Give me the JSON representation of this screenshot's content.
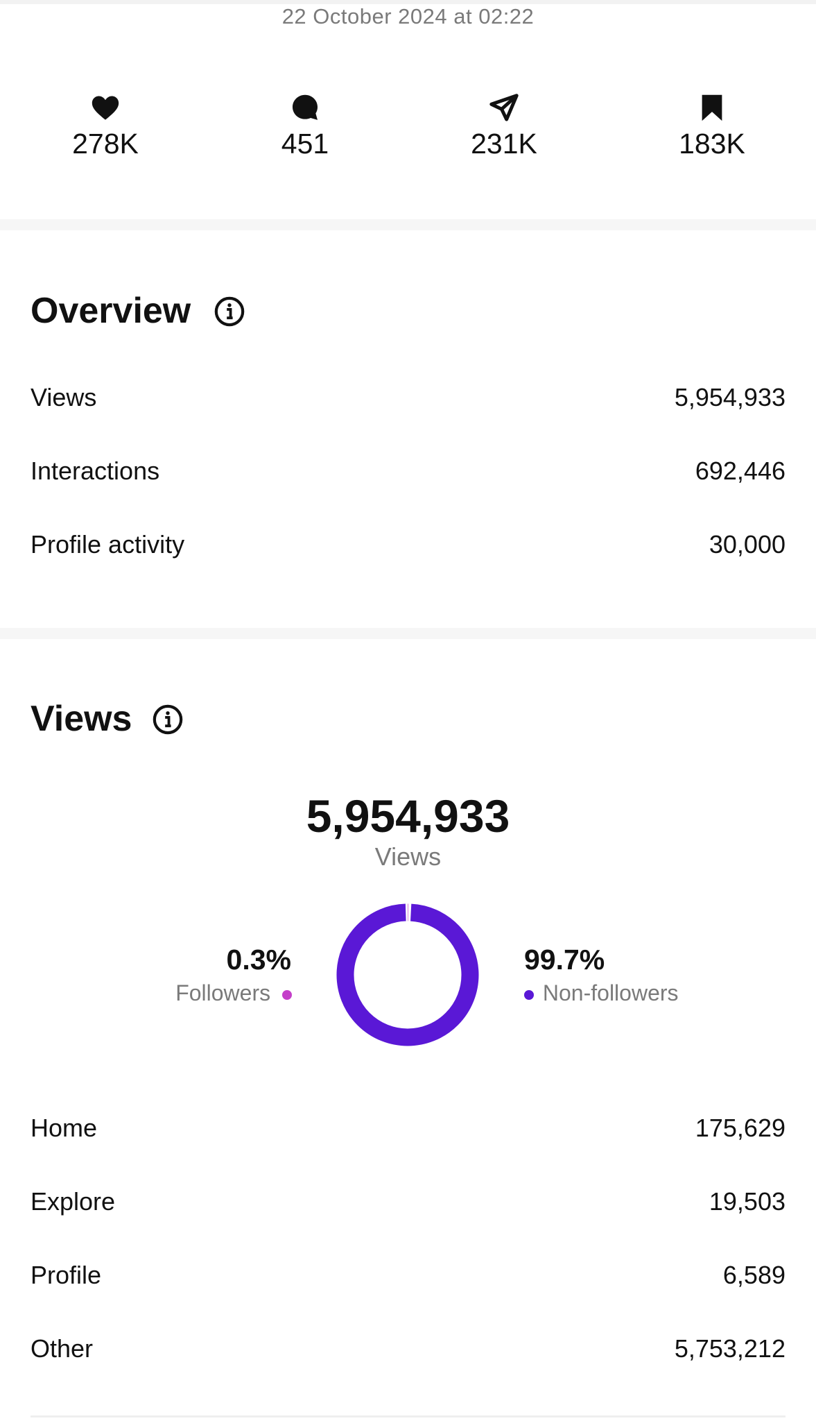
{
  "header": {
    "date": "22 October 2024 at 02:22"
  },
  "stats": [
    {
      "icon": "heart-icon",
      "value": "278K"
    },
    {
      "icon": "comment-icon",
      "value": "451"
    },
    {
      "icon": "send-icon",
      "value": "231K"
    },
    {
      "icon": "bookmark-icon",
      "value": "183K"
    }
  ],
  "overview": {
    "title": "Overview",
    "rows": [
      {
        "label": "Views",
        "value": "5,954,933"
      },
      {
        "label": "Interactions",
        "value": "692,446"
      },
      {
        "label": "Profile activity",
        "value": "30,000"
      }
    ]
  },
  "views": {
    "title": "Views",
    "total": "5,954,933",
    "total_label": "Views",
    "followers": {
      "percent": "0.3%",
      "label": "Followers",
      "color": "#c43fc9",
      "fraction": 0.003
    },
    "non_followers": {
      "percent": "99.7%",
      "label": "Non-followers",
      "color": "#5a18d6",
      "fraction": 0.997
    },
    "sources": [
      {
        "label": "Home",
        "value": "175,629"
      },
      {
        "label": "Explore",
        "value": "19,503"
      },
      {
        "label": "Profile",
        "value": "6,589"
      },
      {
        "label": "Other",
        "value": "5,753,212"
      }
    ]
  }
}
